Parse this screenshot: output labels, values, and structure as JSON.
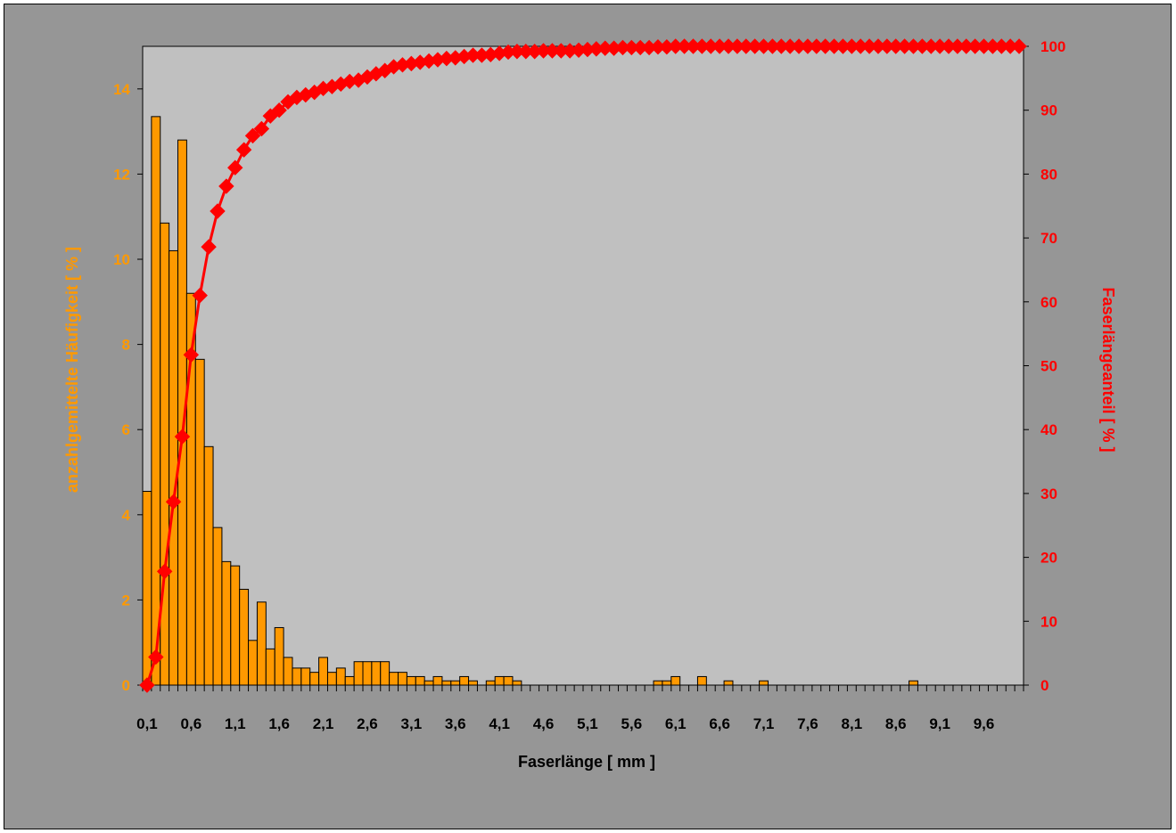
{
  "chart_data": {
    "type": "bar+line",
    "xlabel": "Faserlänge [ mm ]",
    "ylabel_left": "anzahlgemittelte Häufigkeit [ % ]",
    "ylabel_right": "Faserlängeanteil [ % ]",
    "ylim_left": [
      0,
      15
    ],
    "ylim_right": [
      0,
      100
    ],
    "yticks_left": [
      "0",
      "2",
      "4",
      "6",
      "8",
      "10",
      "12",
      "14"
    ],
    "yticks_right": [
      "0",
      "10",
      "20",
      "30",
      "40",
      "50",
      "60",
      "70",
      "80",
      "90",
      "100"
    ],
    "xtick_labels": [
      "0,1",
      "0,6",
      "1,1",
      "1,6",
      "2,1",
      "2,6",
      "3,1",
      "3,6",
      "4,1",
      "4,6",
      "5,1",
      "5,6",
      "6,1",
      "6,6",
      "7,1",
      "7,6",
      "8,1",
      "8,6",
      "9,1",
      "9,6"
    ],
    "x_start": 0.1,
    "x_step": 0.1,
    "n_bins": 100,
    "grid": false,
    "legend": "none",
    "colors": {
      "frame": "#969696",
      "plot_area": "#C0C0C0",
      "bars": "#FF9900",
      "line": "#FF0000",
      "left_axis_text": "#FF9900",
      "right_axis_text": "#FF0000",
      "x_axis_text": "#000000"
    },
    "series": [
      {
        "type": "bar",
        "axis": "left",
        "values": [
          4.55,
          13.35,
          10.85,
          10.2,
          12.8,
          9.2,
          7.65,
          5.6,
          3.7,
          2.9,
          2.8,
          2.25,
          1.05,
          1.95,
          0.85,
          1.35,
          0.65,
          0.4,
          0.4,
          0.3,
          0.65,
          0.3,
          0.4,
          0.2,
          0.55,
          0.55,
          0.55,
          0.55,
          0.3,
          0.3,
          0.2,
          0.2,
          0.1,
          0.2,
          0.1,
          0.1,
          0.2,
          0.1,
          0,
          0.1,
          0.2,
          0.2,
          0.1,
          0,
          0,
          0,
          0,
          0,
          0,
          0,
          0,
          0,
          0,
          0,
          0,
          0,
          0,
          0,
          0.1,
          0.1,
          0.2,
          0,
          0,
          0.2,
          0,
          0,
          0.1,
          0,
          0,
          0,
          0.1,
          0,
          0,
          0,
          0,
          0,
          0,
          0,
          0,
          0,
          0,
          0,
          0,
          0,
          0,
          0,
          0,
          0.1,
          0,
          0,
          0,
          0,
          0,
          0,
          0,
          0,
          0,
          0,
          0,
          0
        ]
      },
      {
        "type": "line",
        "axis": "right",
        "values": [
          0,
          4.4,
          17.8,
          28.7,
          38.9,
          51.7,
          61,
          68.6,
          74.2,
          78.1,
          81,
          83.8,
          86,
          87.1,
          89.1,
          90,
          91.3,
          92,
          92.4,
          92.8,
          93.4,
          93.7,
          94.1,
          94.5,
          94.7,
          95.2,
          95.7,
          96.2,
          96.8,
          97.1,
          97.3,
          97.5,
          97.7,
          97.9,
          98.1,
          98.2,
          98.4,
          98.6,
          98.6,
          98.7,
          98.9,
          99.1,
          99.2,
          99.2,
          99.2,
          99.3,
          99.3,
          99.3,
          99.3,
          99.4,
          99.5,
          99.6,
          99.7,
          99.7,
          99.8,
          99.8,
          99.8,
          99.8,
          99.9,
          99.9,
          100,
          100,
          100,
          100,
          100,
          100,
          100,
          100,
          100,
          100,
          100,
          100,
          100,
          100,
          100,
          100,
          100,
          100,
          100,
          100,
          100,
          100,
          100,
          100,
          100,
          100,
          100,
          100,
          100,
          100,
          100,
          100,
          100,
          100,
          100,
          100,
          100,
          100,
          100,
          100
        ]
      }
    ]
  }
}
